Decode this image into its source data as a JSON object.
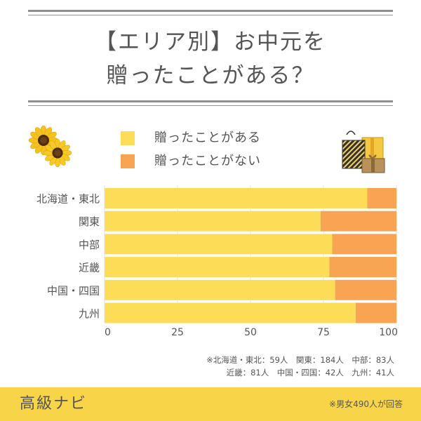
{
  "title": {
    "line1": "【エリア別】お中元を",
    "line2": "贈ったことがある？"
  },
  "legend": {
    "items": [
      {
        "label": "贈ったことがある",
        "color": "#fddc58"
      },
      {
        "label": "贈ったことがない",
        "color": "#f8a453"
      }
    ]
  },
  "chart_data": {
    "type": "bar",
    "orientation": "horizontal",
    "stacked": true,
    "categories": [
      "北海道・東北",
      "関東",
      "中部",
      "近畿",
      "中国・四国",
      "九州"
    ],
    "series": [
      {
        "name": "贈ったことがある",
        "values": [
          90,
          74,
          78,
          77,
          79,
          86
        ],
        "color": "#fddc58"
      },
      {
        "name": "贈ったことがない",
        "values": [
          10,
          26,
          22,
          23,
          21,
          14
        ],
        "color": "#f8a453"
      }
    ],
    "xlim": [
      0,
      100
    ],
    "xticks": [
      "0",
      "25",
      "50",
      "75",
      "100"
    ],
    "grid": true,
    "legend_position": "top"
  },
  "notes": {
    "line1": "※北海道・東北：59人　関東：184人　中部：83人",
    "line2": "近畿：81人　中国・四国：42人　九州：41人"
  },
  "footer": {
    "brand": "高級ナビ",
    "note": "※男女490人が回答",
    "color": "#f8d548"
  },
  "decorations": {
    "left": "sunflower-icon",
    "right": "gift-bags-icon"
  }
}
